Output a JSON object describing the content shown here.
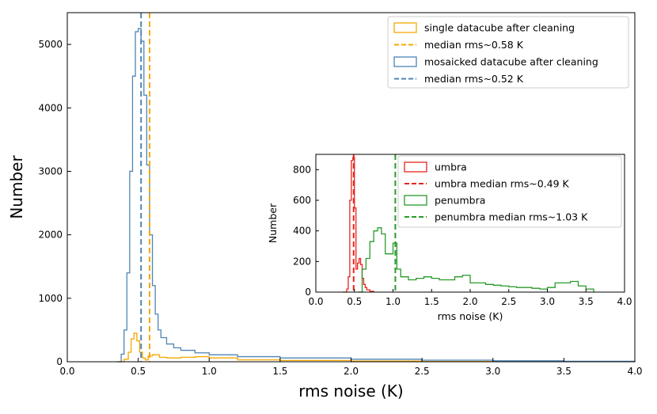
{
  "chart_data": [
    {
      "type": "histogram",
      "panel": "main",
      "xlabel": "rms noise (K)",
      "ylabel": "Number",
      "xlim": [
        0.0,
        4.0
      ],
      "ylim": [
        0,
        5500
      ],
      "xticks": [
        "0.0",
        "0.5",
        "1.0",
        "1.5",
        "2.0",
        "2.5",
        "3.0",
        "3.5",
        "4.0"
      ],
      "yticks": [
        "0",
        "1000",
        "2000",
        "3000",
        "4000",
        "5000"
      ],
      "legend_position": "top-right",
      "series": [
        {
          "name": "single datacube after cleaning",
          "color": "#f5a800",
          "style": "step",
          "x": [
            0.35,
            0.4,
            0.43,
            0.45,
            0.47,
            0.49,
            0.51,
            0.53,
            0.55,
            0.57,
            0.6,
            0.65,
            0.7,
            0.8,
            0.9,
            1.0,
            1.2,
            1.5,
            2.0,
            2.5,
            3.0,
            3.5,
            4.0
          ],
          "values": [
            0,
            40,
            150,
            360,
            450,
            330,
            150,
            60,
            30,
            90,
            110,
            70,
            60,
            70,
            80,
            60,
            30,
            20,
            10,
            5,
            5,
            2,
            0
          ]
        },
        {
          "name": "mosaicked datacube after cleaning",
          "color": "#4f84b5",
          "style": "step",
          "x": [
            0.35,
            0.38,
            0.4,
            0.42,
            0.44,
            0.46,
            0.48,
            0.5,
            0.52,
            0.54,
            0.56,
            0.58,
            0.6,
            0.62,
            0.64,
            0.66,
            0.7,
            0.75,
            0.8,
            0.9,
            1.0,
            1.2,
            1.5,
            2.0,
            2.5,
            3.0,
            3.5,
            4.0
          ],
          "values": [
            0,
            120,
            500,
            1400,
            3000,
            4500,
            5200,
            5250,
            5050,
            4200,
            3100,
            2000,
            1200,
            750,
            500,
            380,
            280,
            220,
            180,
            140,
            110,
            80,
            60,
            40,
            25,
            15,
            8,
            0
          ]
        }
      ],
      "reference_lines": [
        {
          "name": "median rms~0.58 K",
          "x": 0.58,
          "color": "#f5a800",
          "dash": true
        },
        {
          "name": "median rms~0.52 K",
          "x": 0.52,
          "color": "#4f84b5",
          "dash": true
        }
      ]
    },
    {
      "type": "histogram",
      "panel": "inset",
      "xlabel": "rms noise (K)",
      "ylabel": "Number",
      "xlim": [
        0.0,
        4.0
      ],
      "ylim": [
        0,
        900
      ],
      "xticks": [
        "0.0",
        "0.5",
        "1.0",
        "1.5",
        "2.0",
        "2.5",
        "3.0",
        "3.5",
        "4.0"
      ],
      "yticks": [
        "0",
        "200",
        "400",
        "600",
        "800"
      ],
      "legend_position": "top-right",
      "series": [
        {
          "name": "umbra",
          "color": "#e8231c",
          "style": "step",
          "x": [
            0.35,
            0.4,
            0.42,
            0.44,
            0.46,
            0.48,
            0.5,
            0.52,
            0.54,
            0.56,
            0.58,
            0.6,
            0.62,
            0.64,
            0.66,
            0.7,
            0.75
          ],
          "values": [
            0,
            20,
            100,
            600,
            860,
            880,
            550,
            150,
            190,
            220,
            180,
            90,
            50,
            30,
            15,
            5,
            0
          ]
        },
        {
          "name": "penumbra",
          "color": "#2a9a2a",
          "style": "step",
          "x": [
            0.55,
            0.6,
            0.65,
            0.7,
            0.75,
            0.8,
            0.85,
            0.9,
            0.95,
            1.0,
            1.05,
            1.1,
            1.2,
            1.3,
            1.4,
            1.5,
            1.6,
            1.7,
            1.8,
            1.9,
            2.0,
            2.1,
            2.2,
            2.3,
            2.4,
            2.5,
            2.6,
            2.7,
            2.8,
            2.9,
            3.0,
            3.1,
            3.2,
            3.3,
            3.4,
            3.5,
            3.6
          ],
          "values": [
            0,
            150,
            220,
            330,
            400,
            420,
            380,
            250,
            250,
            320,
            150,
            100,
            80,
            90,
            100,
            90,
            80,
            80,
            100,
            110,
            60,
            60,
            50,
            45,
            40,
            35,
            30,
            30,
            25,
            20,
            30,
            60,
            60,
            70,
            40,
            20,
            0
          ]
        }
      ],
      "reference_lines": [
        {
          "name": "umbra median rms~0.49 K",
          "x": 0.49,
          "color": "#e8231c",
          "dash": true
        },
        {
          "name": "penumbra median rms~1.03 K",
          "x": 1.03,
          "color": "#2a9a2a",
          "dash": true
        }
      ]
    }
  ]
}
